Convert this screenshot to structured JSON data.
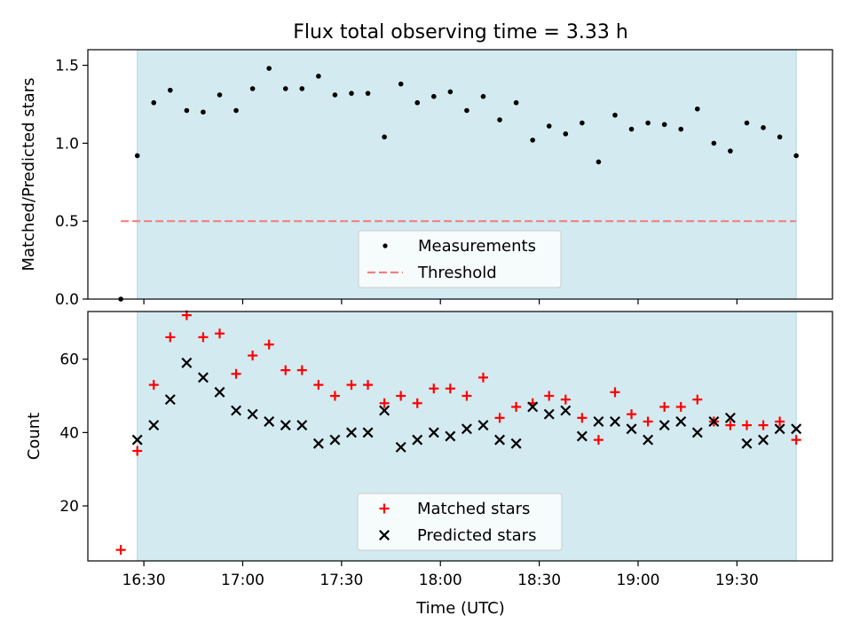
{
  "title": "Flux total observing time = 3.33 h",
  "xlabel": "Time (UTC)",
  "x_ticks": [
    "16:30",
    "17:00",
    "17:30",
    "18:00",
    "18:30",
    "19:00",
    "19:30"
  ],
  "colors": {
    "band": "#d3eaf0",
    "threshold": "#f08080",
    "matched": "#ff0000",
    "predicted": "#000000",
    "measurement": "#000000"
  },
  "chart_data": [
    {
      "type": "scatter",
      "ylabel": "Matched/Predicted stars",
      "ylim": [
        0,
        1.6
      ],
      "yticks": [
        0.0,
        0.5,
        1.0,
        1.5
      ],
      "yticklabels": [
        "0.0",
        "0.5",
        "1.0",
        "1.5"
      ],
      "xlim": [
        "16:13",
        "19:59"
      ],
      "observing_window": [
        "16:28",
        "19:48"
      ],
      "legend_placement": "lower center",
      "series": [
        {
          "name": "Measurements",
          "marker": "dot",
          "x": [
            "16:23",
            "16:28",
            "16:33",
            "16:38",
            "16:43",
            "16:48",
            "16:53",
            "16:58",
            "17:03",
            "17:08",
            "17:13",
            "17:18",
            "17:23",
            "17:28",
            "17:33",
            "17:38",
            "17:43",
            "17:48",
            "17:53",
            "17:58",
            "18:03",
            "18:08",
            "18:13",
            "18:18",
            "18:23",
            "18:28",
            "18:33",
            "18:38",
            "18:43",
            "18:48",
            "18:53",
            "18:58",
            "19:03",
            "19:08",
            "19:13",
            "19:18",
            "19:23",
            "19:28",
            "19:33",
            "19:38",
            "19:43",
            "19:48"
          ],
          "values": [
            0.0,
            0.92,
            1.26,
            1.34,
            1.21,
            1.2,
            1.31,
            1.21,
            1.35,
            1.48,
            1.35,
            1.35,
            1.43,
            1.31,
            1.32,
            1.32,
            1.04,
            1.38,
            1.26,
            1.3,
            1.33,
            1.21,
            1.3,
            1.15,
            1.26,
            1.02,
            1.11,
            1.06,
            1.13,
            0.88,
            1.18,
            1.09,
            1.13,
            1.12,
            1.09,
            1.22,
            1.0,
            0.95,
            1.13,
            1.1,
            1.04,
            0.92
          ]
        },
        {
          "name": "Threshold",
          "marker": "dashed-line",
          "x": [
            "16:23",
            "19:48"
          ],
          "values": [
            0.5,
            0.5
          ]
        }
      ]
    },
    {
      "type": "scatter",
      "ylabel": "Count",
      "ylim": [
        5,
        73
      ],
      "yticks": [
        20,
        40,
        60
      ],
      "yticklabels": [
        "20",
        "40",
        "60"
      ],
      "xlim": [
        "16:13",
        "19:59"
      ],
      "observing_window": [
        "16:28",
        "19:48"
      ],
      "legend_placement": "lower center",
      "series": [
        {
          "name": "Matched stars",
          "marker": "plus",
          "x": [
            "16:23",
            "16:28",
            "16:33",
            "16:38",
            "16:43",
            "16:48",
            "16:53",
            "16:58",
            "17:03",
            "17:08",
            "17:13",
            "17:18",
            "17:23",
            "17:28",
            "17:33",
            "17:38",
            "17:43",
            "17:48",
            "17:53",
            "17:58",
            "18:03",
            "18:08",
            "18:13",
            "18:18",
            "18:23",
            "18:28",
            "18:33",
            "18:38",
            "18:43",
            "18:48",
            "18:53",
            "18:58",
            "19:03",
            "19:08",
            "19:13",
            "19:18",
            "19:23",
            "19:28",
            "19:33",
            "19:38",
            "19:43",
            "19:48"
          ],
          "values": [
            8,
            35,
            53,
            66,
            72,
            66,
            67,
            56,
            61,
            64,
            57,
            57,
            53,
            50,
            53,
            53,
            48,
            50,
            48,
            52,
            52,
            50,
            55,
            44,
            47,
            48,
            50,
            49,
            44,
            38,
            51,
            45,
            43,
            47,
            47,
            49,
            43,
            42,
            42,
            42,
            43,
            38
          ]
        },
        {
          "name": "Predicted stars",
          "marker": "x",
          "x": [
            "16:28",
            "16:33",
            "16:38",
            "16:43",
            "16:48",
            "16:53",
            "16:58",
            "17:03",
            "17:08",
            "17:13",
            "17:18",
            "17:23",
            "17:28",
            "17:33",
            "17:38",
            "17:43",
            "17:48",
            "17:53",
            "17:58",
            "18:03",
            "18:08",
            "18:13",
            "18:18",
            "18:23",
            "18:28",
            "18:33",
            "18:38",
            "18:43",
            "18:48",
            "18:53",
            "18:58",
            "19:03",
            "19:08",
            "19:13",
            "19:18",
            "19:23",
            "19:28",
            "19:33",
            "19:38",
            "19:43",
            "19:48"
          ],
          "values": [
            38,
            42,
            49,
            59,
            55,
            51,
            46,
            45,
            43,
            42,
            42,
            37,
            38,
            40,
            40,
            46,
            36,
            38,
            40,
            39,
            41,
            42,
            38,
            37,
            47,
            45,
            46,
            39,
            43,
            43,
            41,
            38,
            42,
            43,
            40,
            43,
            44,
            37,
            38,
            41,
            41
          ]
        }
      ]
    }
  ]
}
